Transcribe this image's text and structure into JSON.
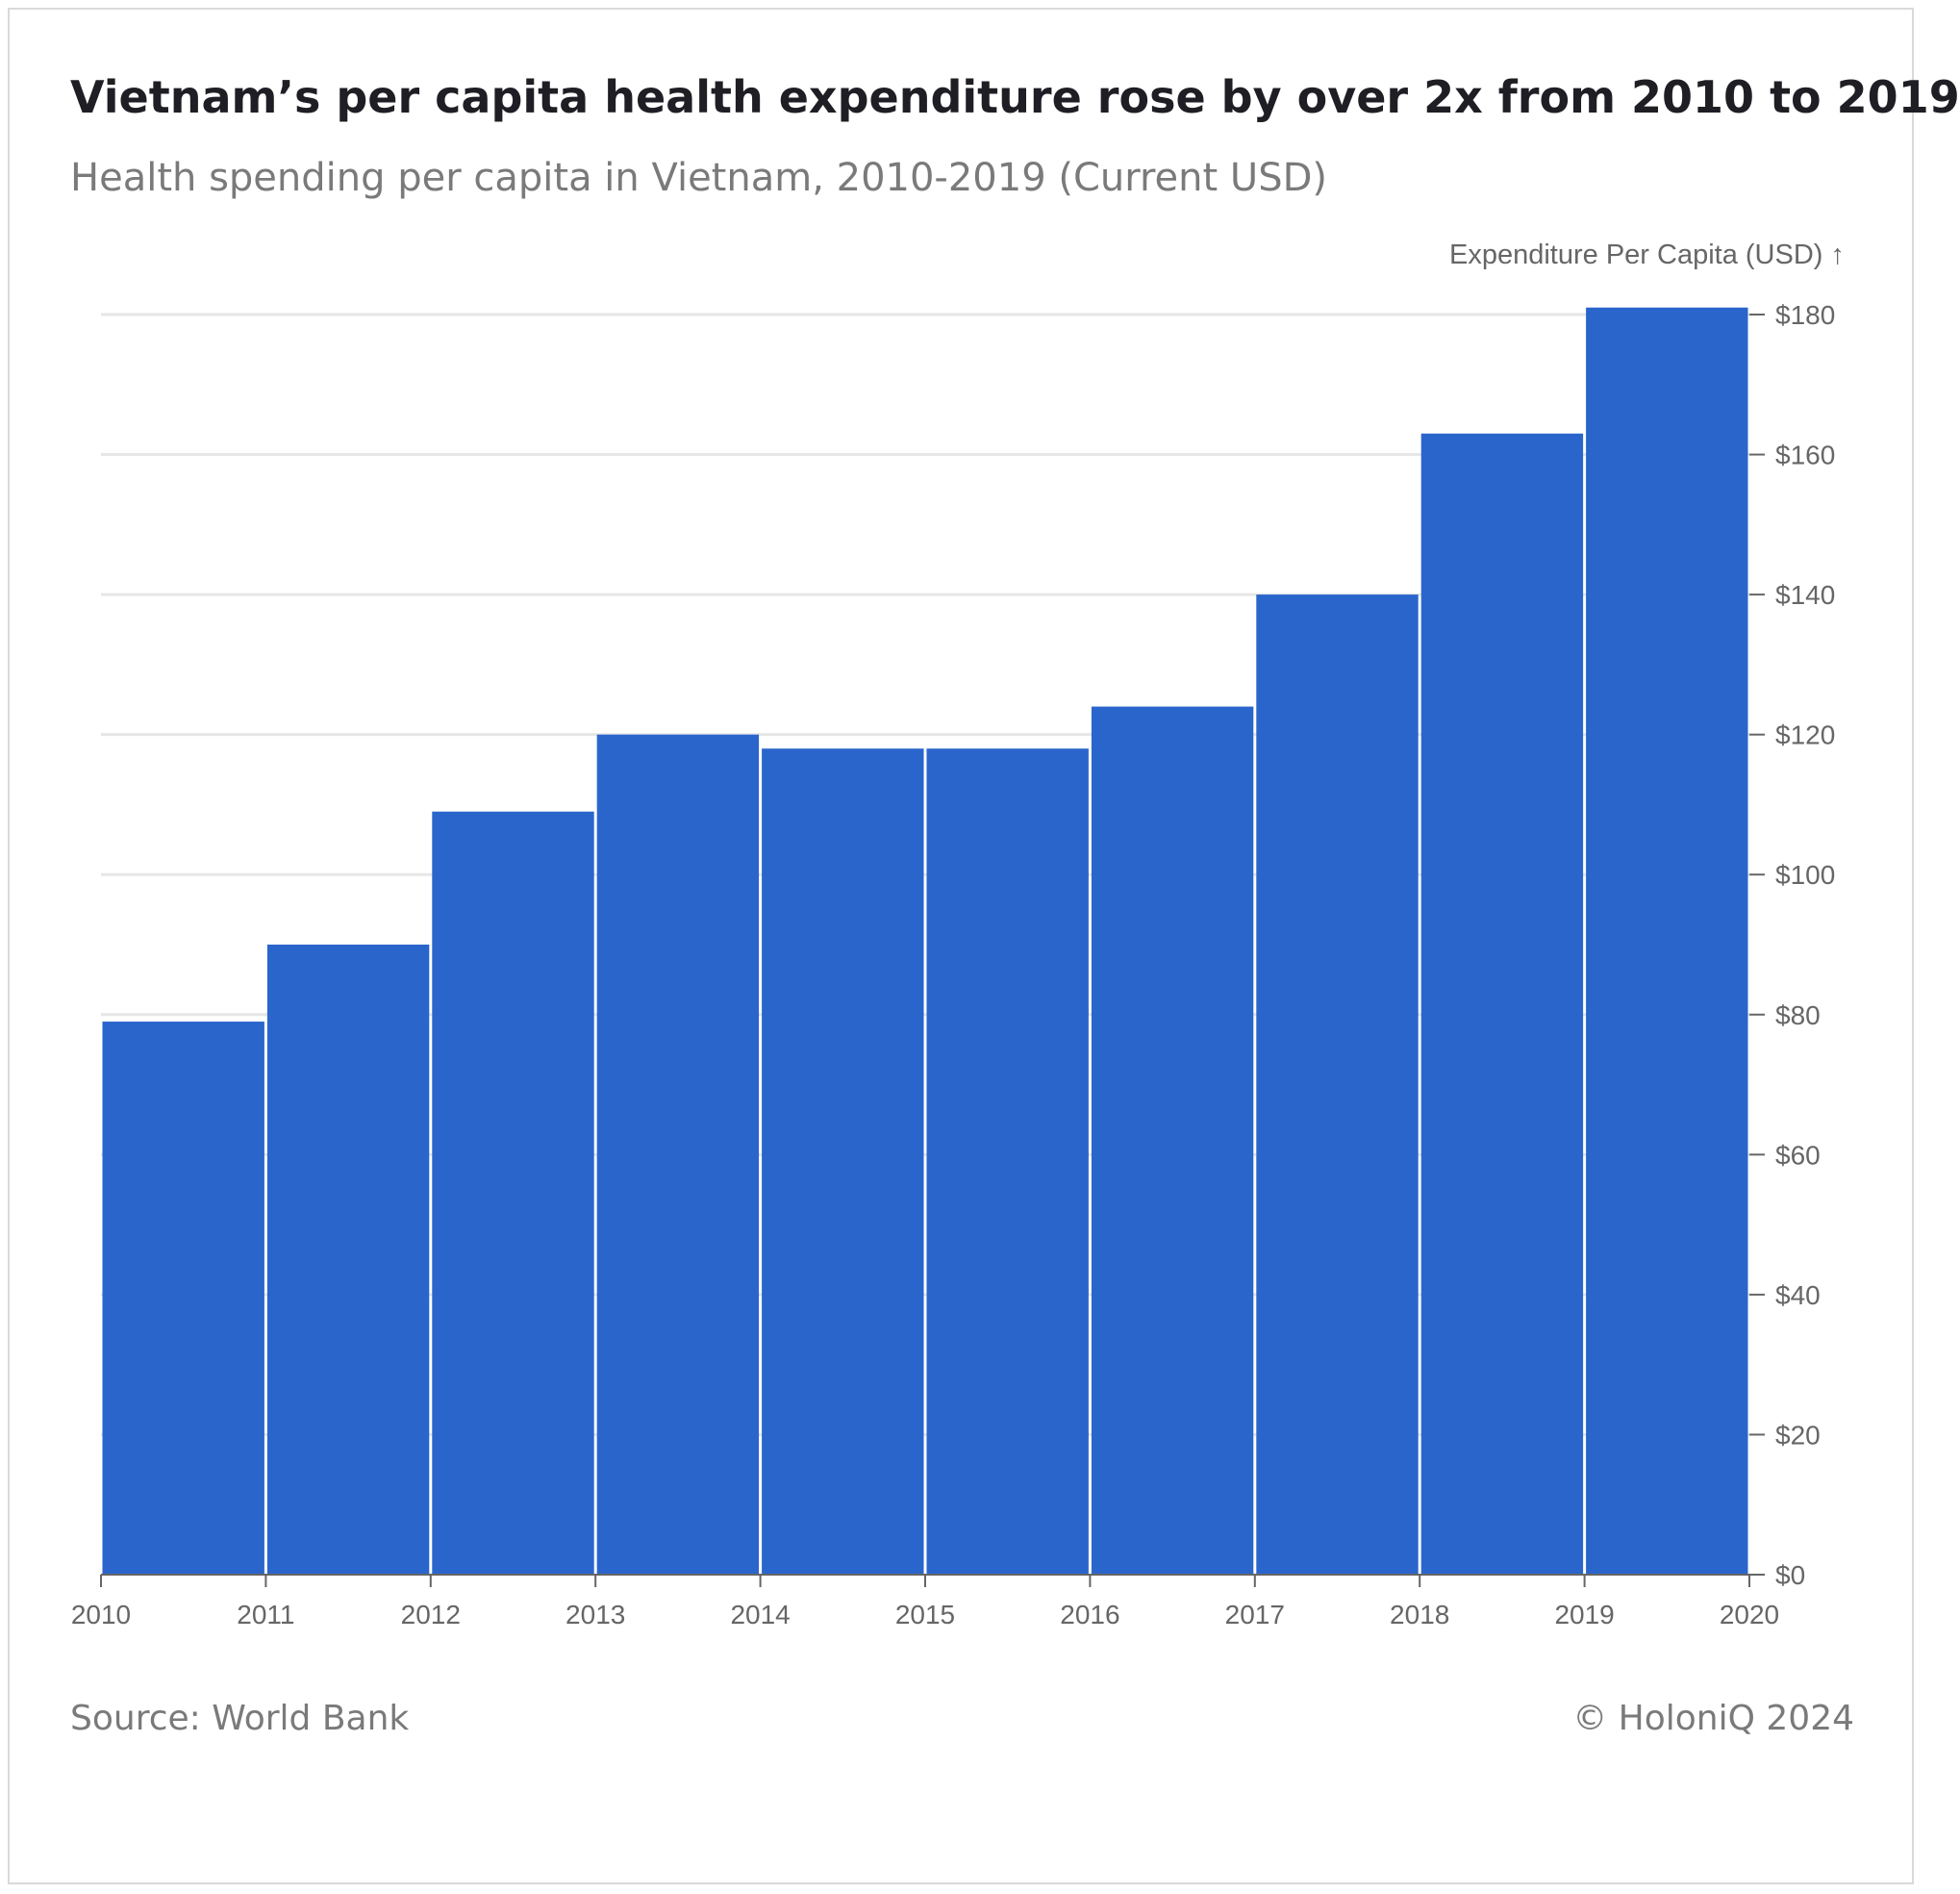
{
  "title": "Vietnam’s per capita health expenditure rose by over 2x from 2010 to 2019",
  "subtitle": "Health spending per capita in Vietnam, 2010-2019 (Current USD)",
  "source": "Source: World Bank",
  "copyright": "© HoloniQ 2024",
  "chart_data": {
    "type": "bar",
    "title": "Vietnam’s per capita health expenditure rose by over 2x from 2010 to 2019",
    "subtitle": "Health spending per capita in Vietnam, 2010-2019 (Current USD)",
    "ylabel": "Expenditure Per Capita (USD) ↑",
    "xlabel": "",
    "categories": [
      "2010",
      "2011",
      "2012",
      "2013",
      "2014",
      "2015",
      "2016",
      "2017",
      "2018",
      "2019"
    ],
    "values": [
      79,
      90,
      109,
      120,
      118,
      118,
      124,
      140,
      163,
      181
    ],
    "x_ticks": [
      "2010",
      "2011",
      "2012",
      "2013",
      "2014",
      "2015",
      "2016",
      "2017",
      "2018",
      "2019",
      "2020"
    ],
    "y_ticks": [
      "$0",
      "$20",
      "$40",
      "$60",
      "$80",
      "$100",
      "$120",
      "$140",
      "$160",
      "$180"
    ],
    "y_tick_values": [
      0,
      20,
      40,
      60,
      80,
      100,
      120,
      140,
      160,
      180
    ],
    "ylim": [
      0,
      180
    ],
    "y_axis_position": "right",
    "grid": true,
    "bar_color": "#2a65cc",
    "grid_color": "#e6e6e6"
  }
}
